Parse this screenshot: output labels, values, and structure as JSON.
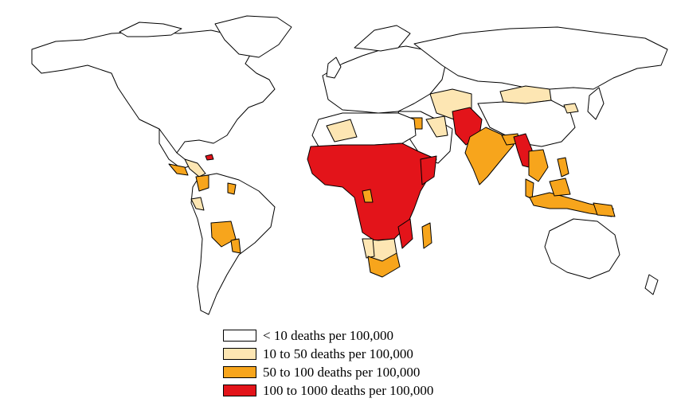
{
  "colors": {
    "ocean": "#ffffff",
    "border": "#000000",
    "cat_lt10": "#ffffff",
    "cat_10_50": "#fde6b3",
    "cat_50_100": "#f7a51c",
    "cat_100_1000": "#e3141a"
  },
  "legend": {
    "items": [
      {
        "label": "< 10 deaths per 100,000",
        "color": "#ffffff"
      },
      {
        "label": " 10 to 50 deaths per 100,000",
        "color": "#fde6b3"
      },
      {
        "label": "50 to 100 deaths per 100,000",
        "color": "#f7a51c"
      },
      {
        "label": "100 to 1000 deaths per 100,000",
        "color": "#e3141a"
      }
    ]
  }
}
